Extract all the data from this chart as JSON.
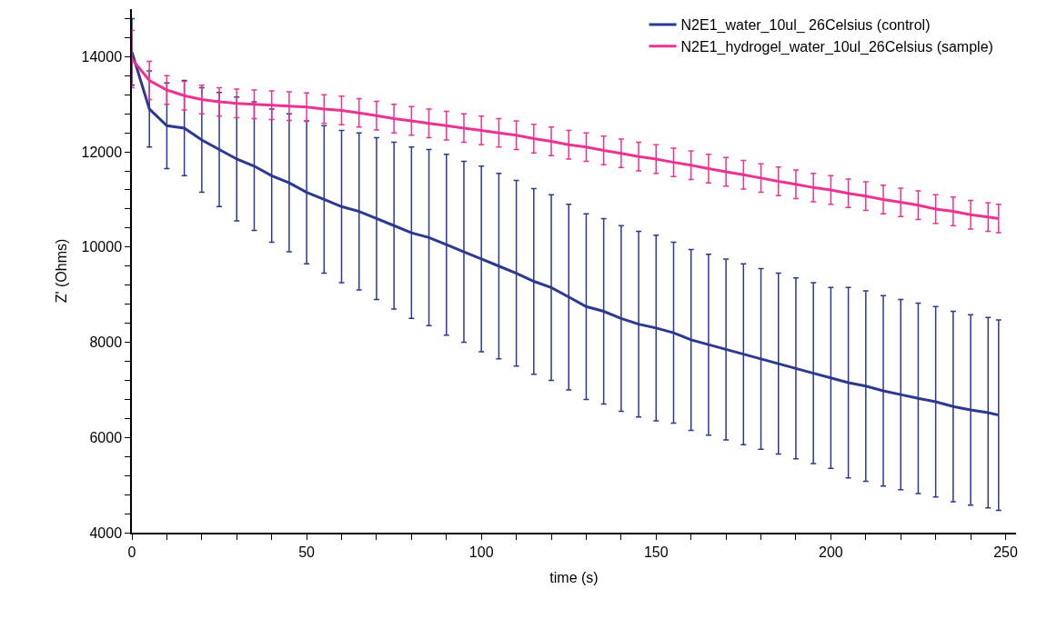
{
  "chart_data": {
    "type": "line",
    "xlabel": "time (s)",
    "ylabel": "Z' (Ohms)",
    "x": [
      0,
      5,
      10,
      15,
      20,
      25,
      30,
      35,
      40,
      45,
      50,
      55,
      60,
      65,
      70,
      75,
      80,
      85,
      90,
      95,
      100,
      105,
      110,
      115,
      120,
      125,
      130,
      135,
      140,
      145,
      150,
      155,
      160,
      165,
      170,
      175,
      180,
      185,
      190,
      195,
      200,
      205,
      210,
      215,
      220,
      225,
      230,
      235,
      240,
      245,
      248
    ],
    "series": [
      {
        "name": "N2E1_water_10ul_ 26Celsius (control)",
        "color": "#2b3990",
        "values": [
          14100,
          12900,
          12550,
          12500,
          12250,
          12050,
          11850,
          11700,
          11500,
          11350,
          11150,
          11000,
          10850,
          10750,
          10600,
          10450,
          10300,
          10200,
          10050,
          9900,
          9750,
          9600,
          9450,
          9280,
          9150,
          8950,
          8750,
          8650,
          8500,
          8380,
          8300,
          8200,
          8050,
          7950,
          7850,
          7750,
          7650,
          7550,
          7450,
          7350,
          7250,
          7150,
          7080,
          6980,
          6900,
          6820,
          6750,
          6650,
          6580,
          6520,
          6470
        ],
        "errors": [
          700,
          800,
          900,
          1000,
          1100,
          1200,
          1300,
          1350,
          1400,
          1450,
          1500,
          1550,
          1600,
          1650,
          1700,
          1750,
          1800,
          1850,
          1900,
          1900,
          1950,
          1950,
          1950,
          1950,
          1950,
          1950,
          1950,
          1950,
          1950,
          1950,
          1950,
          1900,
          1900,
          1900,
          1900,
          1900,
          1900,
          1900,
          1900,
          1900,
          1900,
          2000,
          2000,
          2000,
          2000,
          2000,
          2000,
          2000,
          2000,
          2000,
          2000
        ]
      },
      {
        "name": "N2E1_hydrogel_water_10ul_26Celsius (sample)",
        "color": "#ec3392",
        "values": [
          13950,
          13500,
          13300,
          13180,
          13100,
          13050,
          13020,
          13000,
          12980,
          12960,
          12940,
          12900,
          12870,
          12820,
          12760,
          12700,
          12650,
          12600,
          12550,
          12500,
          12450,
          12400,
          12350,
          12280,
          12220,
          12150,
          12100,
          12030,
          11970,
          11900,
          11850,
          11780,
          11720,
          11650,
          11580,
          11520,
          11450,
          11380,
          11320,
          11250,
          11200,
          11130,
          11070,
          11000,
          10940,
          10880,
          10800,
          10750,
          10680,
          10630,
          10600
        ],
        "errors": [
          600,
          400,
          300,
          300,
          300,
          300,
          300,
          300,
          300,
          300,
          300,
          300,
          300,
          300,
          300,
          300,
          300,
          300,
          300,
          300,
          300,
          300,
          300,
          300,
          300,
          300,
          300,
          300,
          300,
          300,
          300,
          300,
          300,
          300,
          300,
          300,
          300,
          300,
          300,
          300,
          300,
          300,
          300,
          300,
          300,
          300,
          300,
          300,
          300,
          300,
          300
        ]
      }
    ],
    "xlim": [
      0,
      253
    ],
    "xticks": [
      0,
      {
        "value": 10,
        "label": null
      },
      {
        "value": 20,
        "label": null
      },
      {
        "value": 30,
        "label": null
      },
      {
        "value": 40,
        "label": null
      },
      50,
      {
        "value": 60,
        "label": null
      },
      {
        "value": 70,
        "label": null
      },
      {
        "value": 80,
        "label": null
      },
      {
        "value": 90,
        "label": null
      },
      100,
      {
        "value": 110,
        "label": null
      },
      {
        "value": 120,
        "label": null
      },
      {
        "value": 130,
        "label": null
      },
      {
        "value": 140,
        "label": null
      },
      150,
      {
        "value": 160,
        "label": null
      },
      {
        "value": 170,
        "label": null
      },
      {
        "value": 180,
        "label": null
      },
      {
        "value": 190,
        "label": null
      },
      200,
      {
        "value": 210,
        "label": null
      },
      {
        "value": 220,
        "label": null
      },
      {
        "value": 230,
        "label": null
      },
      {
        "value": 240,
        "label": null
      },
      250
    ],
    "ylim": [
      4000,
      15000
    ],
    "yticks": [
      4000,
      {
        "value": 4400,
        "label": null
      },
      {
        "value": 4800,
        "label": null
      },
      {
        "value": 5200,
        "label": null
      },
      {
        "value": 5600,
        "label": null
      },
      6000,
      {
        "value": 6400,
        "label": null
      },
      {
        "value": 6800,
        "label": null
      },
      {
        "value": 7200,
        "label": null
      },
      {
        "value": 7600,
        "label": null
      },
      8000,
      {
        "value": 8400,
        "label": null
      },
      {
        "value": 8800,
        "label": null
      },
      {
        "value": 9200,
        "label": null
      },
      {
        "value": 9600,
        "label": null
      },
      10000,
      {
        "value": 10400,
        "label": null
      },
      {
        "value": 10800,
        "label": null
      },
      {
        "value": 11200,
        "label": null
      },
      {
        "value": 11600,
        "label": null
      },
      12000,
      {
        "value": 12400,
        "label": null
      },
      {
        "value": 12800,
        "label": null
      },
      {
        "value": 13200,
        "label": null
      },
      {
        "value": 13600,
        "label": null
      },
      14000,
      {
        "value": 14400,
        "label": null
      },
      {
        "value": 14800,
        "label": null
      }
    ],
    "grid": false,
    "legend": "top right",
    "marker": "none",
    "line_style": "solid"
  }
}
